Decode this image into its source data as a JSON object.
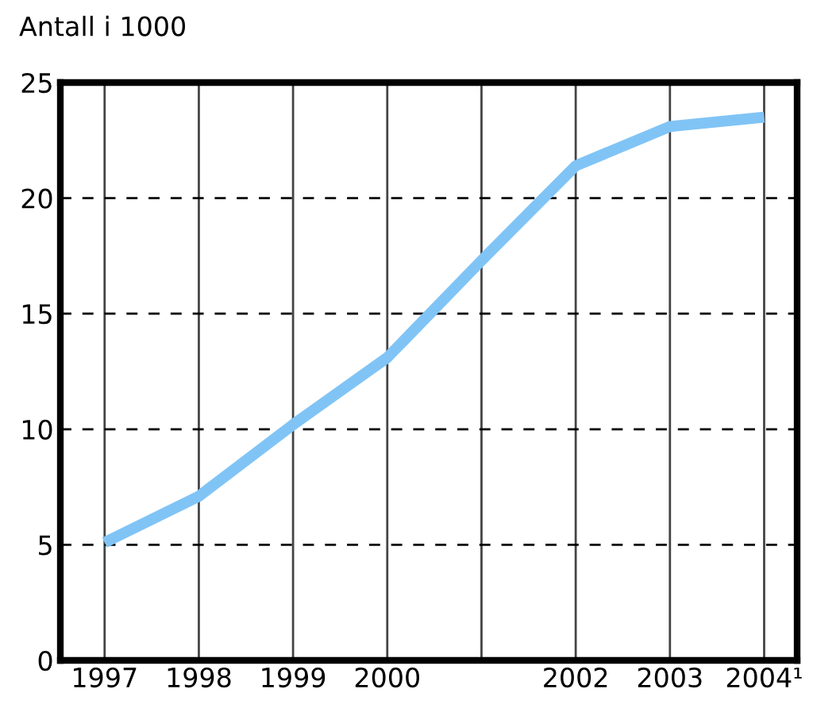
{
  "chart_data": {
    "type": "line",
    "ylabel": "Antall i 1000",
    "x": [
      1997,
      1998,
      1999,
      2000,
      2001,
      2002,
      2003,
      2004
    ],
    "series": [
      {
        "color": "#80c4f6",
        "values": [
          5.1,
          7.1,
          10.2,
          13.1,
          17.3,
          21.4,
          23.1,
          23.5
        ]
      }
    ],
    "xlim": [
      1996.53,
      2004.35
    ],
    "ylim": [
      0,
      25
    ],
    "xticks": [
      1997,
      1998,
      1999,
      2000,
      {
        "value": 2001,
        "label": null
      },
      2002,
      2003,
      {
        "value": 2004,
        "label": "2004¹"
      }
    ],
    "yticks": [
      0,
      5,
      10,
      15,
      20,
      25
    ],
    "grid": true,
    "marker": "none",
    "line_style": "solid",
    "legend": false
  }
}
